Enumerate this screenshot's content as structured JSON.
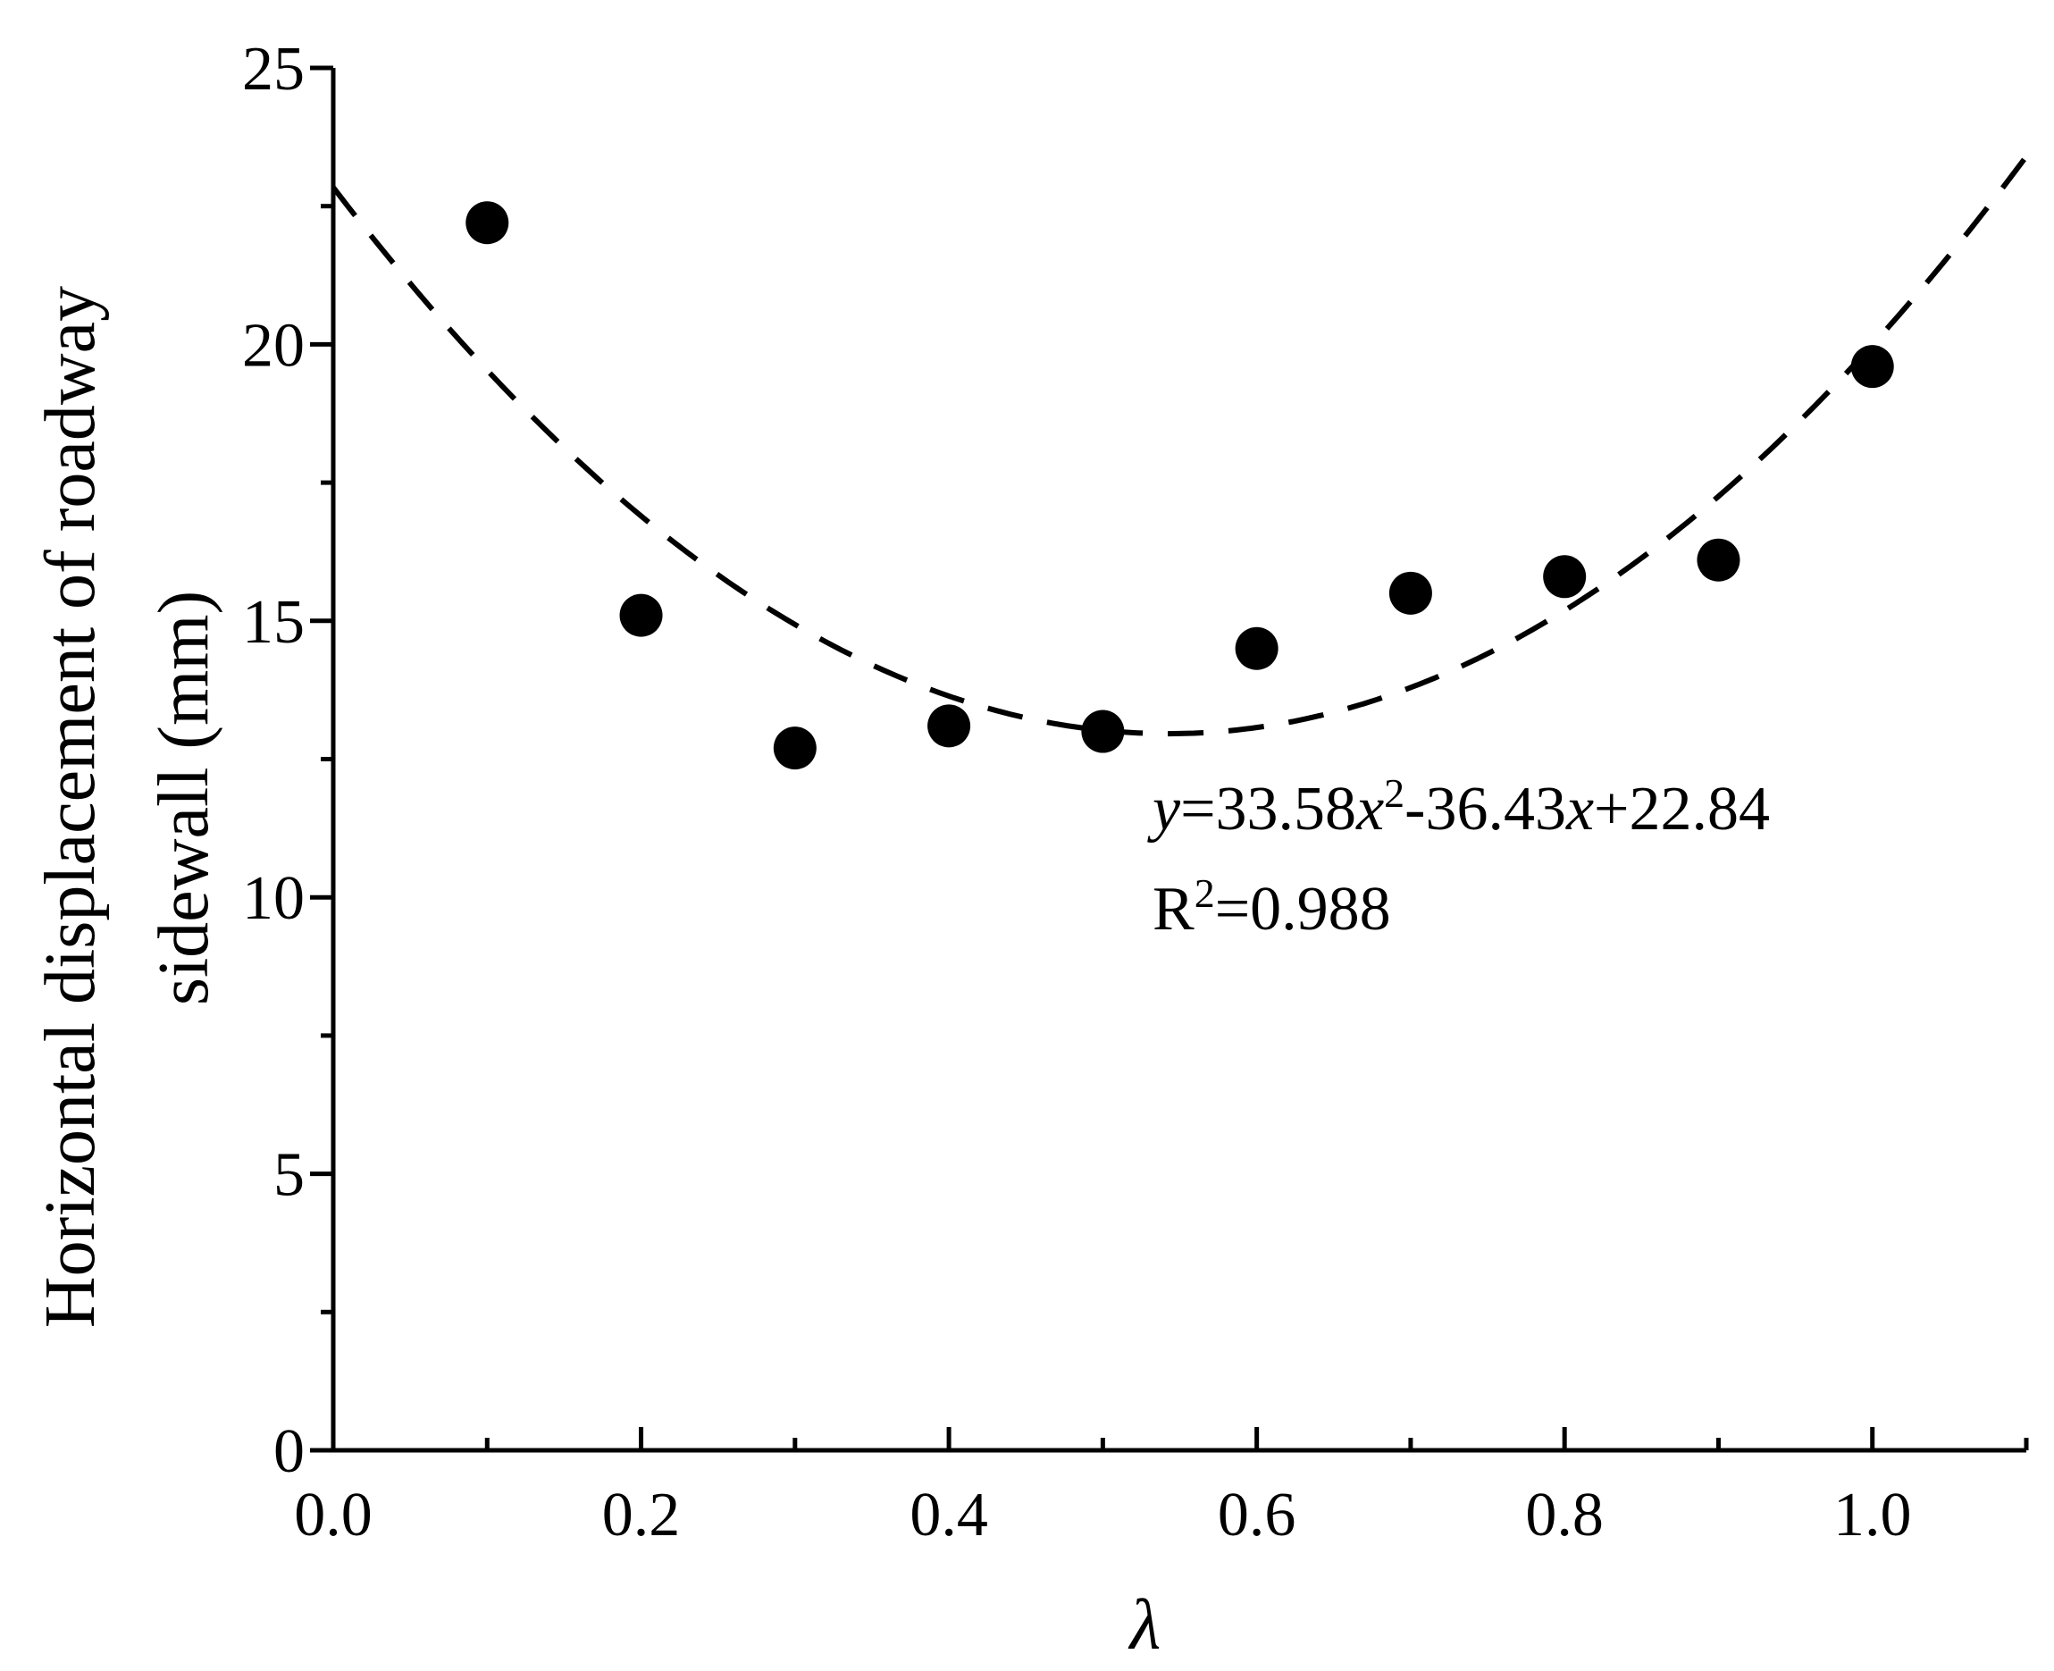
{
  "chart_data": {
    "type": "scatter",
    "xlabel": "λ",
    "ylabel_lines": [
      "Horizontal displacement of roadway",
      "sidewall (mm)"
    ],
    "xlim": [
      0.0,
      1.1
    ],
    "ylim": [
      0,
      25
    ],
    "x_major_ticks": [
      0.0,
      0.2,
      0.4,
      0.6,
      0.8,
      1.0
    ],
    "x_tick_labels": [
      "0.0",
      "0.2",
      "0.4",
      "0.6",
      "0.8",
      "1.0"
    ],
    "x_minor_ticks": [
      0.1,
      0.3,
      0.5,
      0.7,
      0.9,
      1.1
    ],
    "y_major_ticks": [
      0,
      5,
      10,
      15,
      20,
      25
    ],
    "y_tick_labels": [
      "0",
      "5",
      "10",
      "15",
      "20",
      "25"
    ],
    "y_minor_ticks": [
      2.5,
      7.5,
      12.5,
      17.5,
      22.5
    ],
    "grid": false,
    "series": [
      {
        "x": [
          0.1,
          0.2,
          0.3,
          0.4,
          0.5,
          0.6,
          0.7,
          0.8,
          0.9,
          1.0
        ],
        "y": [
          22.2,
          15.1,
          12.7,
          13.1,
          13.0,
          14.5,
          15.5,
          15.8,
          16.1,
          19.6
        ],
        "marker": "filled-circle",
        "color": "#000000"
      }
    ],
    "fit": {
      "style": "dashed",
      "coefficients": {
        "a": 33.58,
        "b": -36.43,
        "c": 22.84
      },
      "equation": {
        "y": "y",
        "eq1": "=33.58",
        "x1": "x",
        "sup1": "2",
        "eq2": "-36.43",
        "x2": "x",
        "eq3": "+22.84"
      },
      "r2": {
        "r": "R",
        "sup": "2",
        "value": "=0.988"
      }
    }
  }
}
